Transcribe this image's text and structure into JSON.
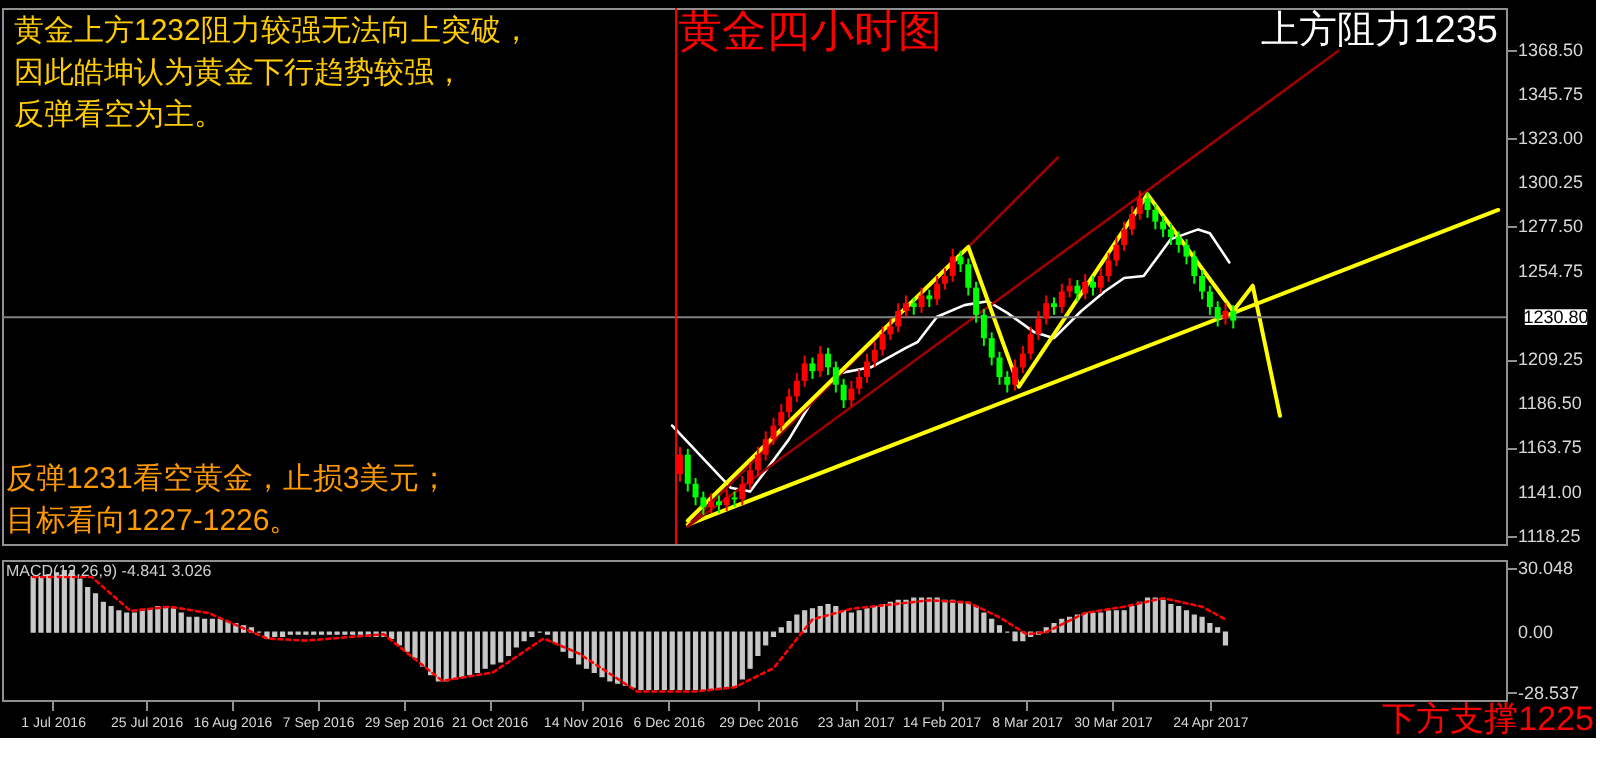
{
  "chart_data": [
    {
      "type": "candlestick",
      "title": "黄金四小时图",
      "x": [
        "2016-12-09",
        "2016-12-11",
        "2016-12-13",
        "2016-12-15",
        "2016-12-17",
        "2016-12-19",
        "2016-12-21",
        "2016-12-23",
        "2016-12-25",
        "2016-12-27",
        "2016-12-29",
        "2016-12-31",
        "2017-01-02",
        "2017-01-04",
        "2017-01-06",
        "2017-01-08",
        "2017-01-10",
        "2017-01-12",
        "2017-01-14",
        "2017-01-16",
        "2017-01-18",
        "2017-01-20",
        "2017-01-22",
        "2017-01-24",
        "2017-01-26",
        "2017-01-28",
        "2017-01-30",
        "2017-02-01",
        "2017-02-03",
        "2017-02-05",
        "2017-02-07",
        "2017-02-09",
        "2017-02-11",
        "2017-02-13",
        "2017-02-15",
        "2017-02-17",
        "2017-02-19",
        "2017-02-21",
        "2017-02-23",
        "2017-02-25",
        "2017-02-27",
        "2017-03-01",
        "2017-03-03",
        "2017-03-05",
        "2017-03-07",
        "2017-03-09",
        "2017-03-11",
        "2017-03-13",
        "2017-03-15",
        "2017-03-17",
        "2017-03-19",
        "2017-03-21",
        "2017-03-23",
        "2017-03-25",
        "2017-03-27",
        "2017-03-29",
        "2017-03-31",
        "2017-04-02",
        "2017-04-04",
        "2017-04-06",
        "2017-04-08",
        "2017-04-10",
        "2017-04-12",
        "2017-04-14",
        "2017-04-16",
        "2017-04-18",
        "2017-04-20",
        "2017-04-22",
        "2017-04-24",
        "2017-04-26",
        "2017-04-28",
        "2017-04-30"
      ],
      "ohlc": [
        [
          1150,
          1164,
          1146,
          1160
        ],
        [
          1160,
          1163,
          1141,
          1145
        ],
        [
          1145,
          1148,
          1134,
          1138
        ],
        [
          1138,
          1141,
          1129,
          1133
        ],
        [
          1133,
          1140,
          1130,
          1136
        ],
        [
          1136,
          1139,
          1130,
          1134
        ],
        [
          1134,
          1142,
          1131,
          1138
        ],
        [
          1138,
          1141,
          1133,
          1137
        ],
        [
          1137,
          1149,
          1134,
          1145
        ],
        [
          1145,
          1156,
          1142,
          1152
        ],
        [
          1152,
          1164,
          1149,
          1160
        ],
        [
          1160,
          1172,
          1157,
          1168
        ],
        [
          1168,
          1179,
          1165,
          1175
        ],
        [
          1175,
          1186,
          1172,
          1182
        ],
        [
          1182,
          1194,
          1179,
          1190
        ],
        [
          1190,
          1202,
          1187,
          1198
        ],
        [
          1198,
          1211,
          1195,
          1207
        ],
        [
          1207,
          1210,
          1199,
          1203
        ],
        [
          1203,
          1216,
          1200,
          1212
        ],
        [
          1212,
          1215,
          1201,
          1205
        ],
        [
          1205,
          1208,
          1192,
          1196
        ],
        [
          1196,
          1199,
          1184,
          1188
        ],
        [
          1188,
          1198,
          1185,
          1194
        ],
        [
          1194,
          1204,
          1191,
          1200
        ],
        [
          1200,
          1212,
          1197,
          1208
        ],
        [
          1208,
          1218,
          1205,
          1214
        ],
        [
          1214,
          1226,
          1211,
          1222
        ],
        [
          1222,
          1230,
          1219,
          1226
        ],
        [
          1226,
          1238,
          1223,
          1234
        ],
        [
          1234,
          1242,
          1231,
          1238
        ],
        [
          1238,
          1241,
          1232,
          1236
        ],
        [
          1236,
          1246,
          1233,
          1242
        ],
        [
          1242,
          1245,
          1236,
          1240
        ],
        [
          1240,
          1252,
          1237,
          1248
        ],
        [
          1248,
          1256,
          1245,
          1252
        ],
        [
          1252,
          1266,
          1249,
          1262
        ],
        [
          1262,
          1265,
          1254,
          1258
        ],
        [
          1258,
          1261,
          1242,
          1246
        ],
        [
          1246,
          1249,
          1228,
          1232
        ],
        [
          1232,
          1235,
          1216,
          1220
        ],
        [
          1220,
          1223,
          1206,
          1210
        ],
        [
          1210,
          1213,
          1196,
          1200
        ],
        [
          1200,
          1203,
          1192,
          1196
        ],
        [
          1196,
          1209,
          1193,
          1205
        ],
        [
          1205,
          1216,
          1202,
          1212
        ],
        [
          1212,
          1226,
          1209,
          1222
        ],
        [
          1222,
          1234,
          1219,
          1230
        ],
        [
          1230,
          1242,
          1227,
          1238
        ],
        [
          1238,
          1241,
          1232,
          1236
        ],
        [
          1236,
          1248,
          1233,
          1244
        ],
        [
          1244,
          1251,
          1241,
          1247
        ],
        [
          1247,
          1250,
          1239,
          1243
        ],
        [
          1243,
          1253,
          1240,
          1249
        ],
        [
          1249,
          1252,
          1242,
          1246
        ],
        [
          1246,
          1256,
          1243,
          1252
        ],
        [
          1252,
          1264,
          1249,
          1260
        ],
        [
          1260,
          1272,
          1257,
          1268
        ],
        [
          1268,
          1280,
          1265,
          1276
        ],
        [
          1276,
          1288,
          1273,
          1284
        ],
        [
          1284,
          1296,
          1281,
          1292
        ],
        [
          1292,
          1295,
          1282,
          1286
        ],
        [
          1286,
          1289,
          1276,
          1280
        ],
        [
          1280,
          1283,
          1272,
          1276
        ],
        [
          1276,
          1279,
          1268,
          1272
        ],
        [
          1272,
          1275,
          1264,
          1268
        ],
        [
          1268,
          1271,
          1258,
          1262
        ],
        [
          1262,
          1265,
          1248,
          1252
        ],
        [
          1252,
          1255,
          1240,
          1244
        ],
        [
          1244,
          1247,
          1232,
          1236
        ],
        [
          1236,
          1239,
          1226,
          1230
        ],
        [
          1230,
          1238,
          1227,
          1234
        ],
        [
          1234,
          1237,
          1225,
          1229
        ]
      ],
      "colors": [
        "#ff0000",
        "#00ff00",
        "#00ff00",
        "#00ff00",
        "#ff0000",
        "#00ff00",
        "#ff0000",
        "#00ff00",
        "#ff0000",
        "#ff0000",
        "#ff0000",
        "#ff0000",
        "#ff0000",
        "#ff0000",
        "#ff0000",
        "#ff0000",
        "#ff0000",
        "#00ff00",
        "#ff0000",
        "#00ff00",
        "#00ff00",
        "#00ff00",
        "#ff0000",
        "#ff0000",
        "#ff0000",
        "#ff0000",
        "#ff0000",
        "#ff0000",
        "#ff0000",
        "#ff0000",
        "#00ff00",
        "#ff0000",
        "#00ff00",
        "#ff0000",
        "#ff0000",
        "#ff0000",
        "#00ff00",
        "#00ff00",
        "#00ff00",
        "#00ff00",
        "#00ff00",
        "#00ff00",
        "#00ff00",
        "#ff0000",
        "#ff0000",
        "#ff0000",
        "#ff0000",
        "#ff0000",
        "#00ff00",
        "#ff0000",
        "#ff0000",
        "#00ff00",
        "#ff0000",
        "#00ff00",
        "#ff0000",
        "#ff0000",
        "#ff0000",
        "#ff0000",
        "#ff0000",
        "#ff0000",
        "#00ff00",
        "#00ff00",
        "#00ff00",
        "#00ff00",
        "#00ff00",
        "#00ff00",
        "#00ff00",
        "#00ff00",
        "#00ff00",
        "#00ff00",
        "#ff0000",
        "#00ff00"
      ],
      "series": [
        {
          "type": "line",
          "color": "#ffffff",
          "x": [
            "2016-12-07",
            "2016-12-22",
            "2016-12-27",
            "2017-01-06",
            "2017-01-12",
            "2017-01-19",
            "2017-01-27",
            "2017-02-05",
            "2017-02-08",
            "2017-02-13",
            "2017-02-20",
            "2017-02-26",
            "2017-03-03",
            "2017-03-10",
            "2017-03-15",
            "2017-03-22",
            "2017-03-28",
            "2017-04-02",
            "2017-04-07",
            "2017-04-14",
            "2017-04-21",
            "2017-04-24",
            "2017-04-29"
          ],
          "values": [
            1175,
            1143,
            1141,
            1168,
            1188,
            1202,
            1205,
            1215,
            1218,
            1231,
            1237,
            1239,
            1233,
            1223,
            1220,
            1234,
            1244,
            1251,
            1252,
            1271,
            1276,
            1274,
            1259
          ]
        },
        {
          "type": "line",
          "color": "#ffff00",
          "x": [
            "2016-12-11",
            "2017-07-07"
          ],
          "values": [
            1124,
            1286
          ]
        },
        {
          "type": "line",
          "color": "#a00000",
          "x": [
            "2016-12-11",
            "2017-03-16"
          ],
          "values": [
            1123,
            1313
          ]
        },
        {
          "type": "line",
          "color": "#a00000",
          "x": [
            "2016-12-11",
            "2017-05-27"
          ],
          "values": [
            1123,
            1368
          ]
        },
        {
          "type": "line",
          "color": "#ffff00",
          "x": [
            "2016-12-11",
            "2017-02-21",
            "2017-03-06",
            "2017-04-08",
            "2017-04-30",
            "2017-05-05",
            "2017-05-12"
          ],
          "values": [
            1126,
            1267,
            1195,
            1294,
            1234,
            1247,
            1180
          ]
        }
      ],
      "xlim": [
        "2016-06-18",
        "2017-07-09"
      ],
      "ylim": [
        1114,
        1390
      ],
      "yticks": [
        1118.25,
        {
          "value": 1141,
          "label": "1141.00"
        },
        1163.75,
        {
          "value": 1186.5,
          "label": "1186.50"
        },
        1209.25,
        1254.75,
        {
          "value": 1277.5,
          "label": "1277.50"
        },
        1300.25,
        {
          "value": 1323,
          "label": "1323.00"
        },
        1345.75,
        {
          "value": 1368.5,
          "label": "1368.50"
        }
      ],
      "tick_labels": "y",
      "ref_lines": [
        {
          "axis": "y",
          "value": 1230.8,
          "label": "1230.80",
          "color": "#808080"
        },
        {
          "axis": "x",
          "value": "2016-12-08",
          "color": "#ff0000"
        }
      ],
      "annotations": [
        "黄金上方1232阻力较强无法向上突破，",
        "因此皓坤认为黄金下行趋势较强，",
        "反弹看空为主。",
        "反弹1231看空黄金，止损3美元；",
        "目标看向1227-1226。",
        "上方阻力1235"
      ]
    },
    {
      "type": "bar",
      "x": [
        "2016-06-26",
        "2016-06-28",
        "2016-06-30",
        "2016-07-02",
        "2016-07-04",
        "2016-07-06",
        "2016-07-08",
        "2016-07-10",
        "2016-07-12",
        "2016-07-14",
        "2016-07-16",
        "2016-07-18",
        "2016-07-20",
        "2016-07-22",
        "2016-07-24",
        "2016-07-26",
        "2016-07-28",
        "2016-07-30",
        "2016-08-01",
        "2016-08-03",
        "2016-08-05",
        "2016-08-07",
        "2016-08-09",
        "2016-08-11",
        "2016-08-13",
        "2016-08-15",
        "2016-08-17",
        "2016-08-19",
        "2016-08-21",
        "2016-08-23",
        "2016-08-25",
        "2016-08-27",
        "2016-08-29",
        "2016-08-31",
        "2016-09-02",
        "2016-09-04",
        "2016-09-06",
        "2016-09-08",
        "2016-09-10",
        "2016-09-12",
        "2016-09-14",
        "2016-09-16",
        "2016-09-18",
        "2016-09-20",
        "2016-09-22",
        "2016-09-24",
        "2016-09-26",
        "2016-09-28",
        "2016-09-30",
        "2016-10-02",
        "2016-10-04",
        "2016-10-06",
        "2016-10-08",
        "2016-10-10",
        "2016-10-12",
        "2016-10-14",
        "2016-10-16",
        "2016-10-18",
        "2016-10-20",
        "2016-10-22",
        "2016-10-24",
        "2016-10-26",
        "2016-10-28",
        "2016-10-30",
        "2016-11-01",
        "2016-11-03",
        "2016-11-05",
        "2016-11-07",
        "2016-11-09",
        "2016-11-11",
        "2016-11-13",
        "2016-11-15",
        "2016-11-17",
        "2016-11-19",
        "2016-11-21",
        "2016-11-23",
        "2016-11-25",
        "2016-11-27",
        "2016-11-29",
        "2016-12-01",
        "2016-12-03",
        "2016-12-05",
        "2016-12-07",
        "2016-12-09",
        "2016-12-11",
        "2016-12-13",
        "2016-12-15",
        "2016-12-17",
        "2016-12-19",
        "2016-12-21",
        "2016-12-23",
        "2016-12-25",
        "2016-12-27",
        "2016-12-29",
        "2016-12-31",
        "2017-01-02",
        "2017-01-04",
        "2017-01-06",
        "2017-01-08",
        "2017-01-10",
        "2017-01-12",
        "2017-01-14",
        "2017-01-16",
        "2017-01-18",
        "2017-01-20",
        "2017-01-22",
        "2017-01-24",
        "2017-01-26",
        "2017-01-28",
        "2017-01-30",
        "2017-02-01",
        "2017-02-03",
        "2017-02-05",
        "2017-02-07",
        "2017-02-09",
        "2017-02-11",
        "2017-02-13",
        "2017-02-15",
        "2017-02-17",
        "2017-02-19",
        "2017-02-21",
        "2017-02-23",
        "2017-02-25",
        "2017-02-27",
        "2017-03-01",
        "2017-03-03",
        "2017-03-05",
        "2017-03-07",
        "2017-03-09",
        "2017-03-11",
        "2017-03-13",
        "2017-03-15",
        "2017-03-17",
        "2017-03-19",
        "2017-03-21",
        "2017-03-23",
        "2017-03-25",
        "2017-03-27",
        "2017-03-29",
        "2017-03-31",
        "2017-04-02",
        "2017-04-04",
        "2017-04-06",
        "2017-04-08",
        "2017-04-10",
        "2017-04-12",
        "2017-04-14",
        "2017-04-16",
        "2017-04-18",
        "2017-04-20",
        "2017-04-22",
        "2017-04-24",
        "2017-04-26",
        "2017-04-28"
      ],
      "series": [
        {
          "type": "bar",
          "color": "#c8c8c8",
          "values": [
            26,
            26,
            27,
            28,
            29,
            29,
            25,
            21,
            18,
            14,
            12,
            10,
            9,
            9,
            10,
            11,
            12,
            12,
            11,
            9,
            7,
            7,
            6,
            6,
            6,
            5,
            4,
            3,
            2,
            0,
            -3,
            -2,
            -2,
            -1,
            -1,
            -1,
            -1,
            -1,
            -1,
            -1,
            -1,
            -1,
            -1,
            -2,
            -2,
            -2,
            -3,
            -6,
            -9,
            -12,
            -16,
            -20,
            -23,
            -23,
            -22,
            -21,
            -20,
            -19,
            -17,
            -15,
            -14,
            -11,
            -7,
            -4,
            -2,
            0,
            -1,
            -5,
            -9,
            -12,
            -15,
            -17,
            -19,
            -21,
            -23,
            -24,
            -25,
            -26,
            -27,
            -27,
            -27,
            -27,
            -27,
            -27,
            -27,
            -27,
            -27,
            -27,
            -27,
            -26,
            -26,
            -22,
            -17,
            -11,
            -6,
            -2,
            2,
            5,
            8,
            10,
            11,
            12,
            13,
            12,
            10,
            9,
            10,
            11,
            12,
            13,
            14,
            15,
            15,
            16,
            16,
            16,
            16,
            15,
            15,
            14,
            14,
            12,
            9,
            6,
            3,
            0,
            -4,
            -4,
            -2,
            -1,
            2,
            4,
            6,
            7,
            8,
            9,
            9,
            9,
            10,
            10,
            10,
            12,
            14,
            16,
            16,
            15,
            13,
            12,
            10,
            8,
            7,
            4,
            2,
            -6
          ]
        },
        {
          "type": "line",
          "color": "#ff0000",
          "line_style": "dotted",
          "x": [
            "2016-06-26",
            "2016-07-11",
            "2016-07-21",
            "2016-07-31",
            "2016-08-10",
            "2016-08-25",
            "2016-09-04",
            "2016-09-24",
            "2016-10-09",
            "2016-10-22",
            "2016-11-04",
            "2016-11-13",
            "2016-11-28",
            "2016-12-13",
            "2016-12-23",
            "2017-01-02",
            "2017-01-12",
            "2017-01-22",
            "2017-02-01",
            "2017-02-11",
            "2017-02-21",
            "2017-03-01",
            "2017-03-08",
            "2017-03-13",
            "2017-03-23",
            "2017-04-02",
            "2017-04-12",
            "2017-04-22",
            "2017-04-28"
          ],
          "values": [
            26,
            26,
            10,
            12,
            9,
            -3,
            -4,
            -1,
            -23,
            -19,
            -3,
            -10,
            -28,
            -28,
            -26,
            -17,
            6,
            11,
            13,
            15,
            14,
            7,
            -1,
            0,
            9,
            12,
            16,
            12,
            6
          ]
        }
      ],
      "xlim": [
        "2016-06-18",
        "2017-07-09"
      ],
      "xticks": [
        {
          "value": "2016-07-01",
          "label": "1 Jul 2016"
        },
        {
          "value": "2016-07-25",
          "label": "25 Jul 2016"
        },
        {
          "value": "2016-08-16",
          "label": "16 Aug 2016"
        },
        {
          "value": "2016-09-07",
          "label": "7 Sep 2016"
        },
        {
          "value": "2016-09-29",
          "label": "29 Sep 2016"
        },
        {
          "value": "2016-10-21",
          "label": "21 Oct 2016"
        },
        {
          "value": "2016-11-14",
          "label": "14 Nov 2016"
        },
        {
          "value": "2016-12-06",
          "label": "6 Dec 2016"
        },
        {
          "value": "2016-12-29",
          "label": "29 Dec 2016"
        },
        {
          "value": "2017-01-23",
          "label": "23 Jan 2017"
        },
        {
          "value": "2017-02-14",
          "label": "14 Feb 2017"
        },
        {
          "value": "2017-03-08",
          "label": "8 Mar 2017"
        },
        {
          "value": "2017-03-30",
          "label": "30 Mar 2017"
        },
        {
          "value": "2017-04-24",
          "label": "24 Apr 2017"
        }
      ],
      "ylim": [
        -32,
        34
      ],
      "yticks": [
        30.048,
        {
          "value": 0,
          "label": "0.00"
        },
        -28.537
      ],
      "annotations": [
        "MACD(12,26,9) -4.841 3.026",
        "下方支撑1225"
      ]
    }
  ]
}
